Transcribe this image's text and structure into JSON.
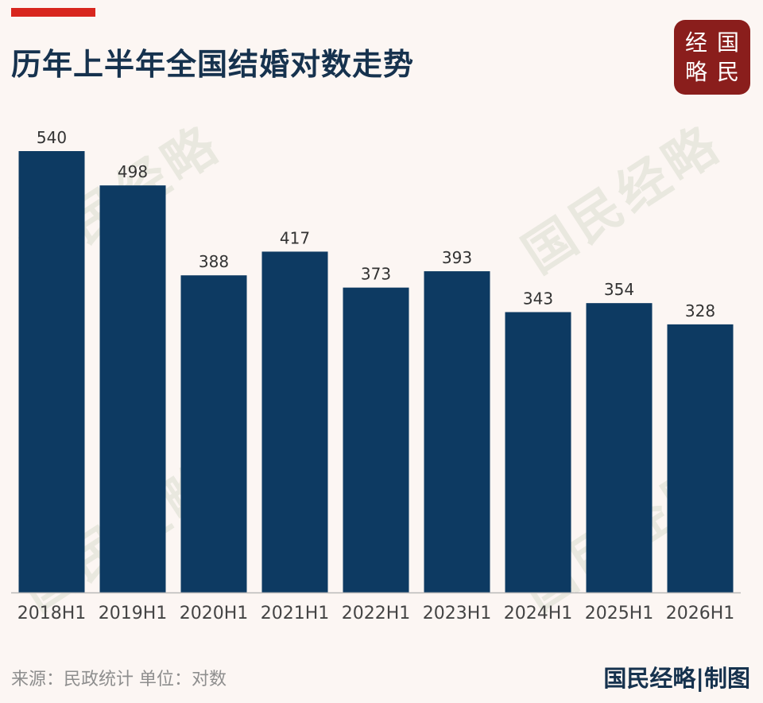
{
  "header": {
    "title": "历年上半年全国结婚对数走势"
  },
  "logo": {
    "chars": [
      "经",
      "国",
      "略",
      "民"
    ]
  },
  "watermark": {
    "text": "国民经略"
  },
  "footer": {
    "source": "来源：民政统计 单位：对数",
    "brand": "国民经略|制图"
  },
  "colors": {
    "bar": "#0d3a62",
    "accent": "#d8261e",
    "background": "#fcf6f3",
    "logo_bg": "#8a1e1c",
    "title": "#16324e"
  },
  "chart_data": {
    "type": "bar",
    "title": "历年上半年全国结婚对数走势",
    "categories": [
      "2018H1",
      "2019H1",
      "2020H1",
      "2021H1",
      "2022H1",
      "2023H1",
      "2024H1",
      "2025H1",
      "2026H1"
    ],
    "values": [
      540,
      498,
      388,
      417,
      373,
      393,
      343,
      354,
      328
    ],
    "xlabel": "",
    "ylabel": "",
    "ylim": [
      0,
      540
    ],
    "grid": false,
    "data_labels": true,
    "legend": "none"
  }
}
